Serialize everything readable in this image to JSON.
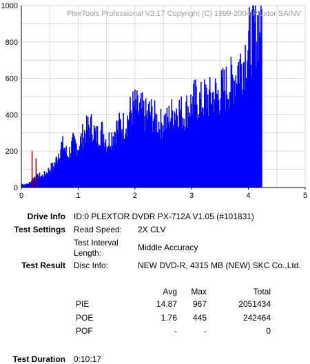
{
  "chart_data": {
    "type": "bar",
    "watermark": "PlexTools Professional V2.17 Copyright (C) 1999-2004 Plextor SA/NV",
    "xlim": [
      0,
      5
    ],
    "ylim": [
      0,
      1000
    ],
    "x_ticks": [
      "0",
      "1",
      "2",
      "3",
      "4",
      "5"
    ],
    "y_ticks": [
      "0",
      "200",
      "400",
      "600",
      "800",
      "1000"
    ],
    "grid": true,
    "bar_color": "#0000ff",
    "spike_color": "#8b0000",
    "series": [
      {
        "points": [
          [
            0.02,
            20
          ],
          [
            0.08,
            18
          ],
          [
            0.12,
            25
          ],
          [
            0.15,
            30
          ],
          [
            0.18,
            45
          ],
          [
            0.22,
            60
          ],
          [
            0.25,
            55
          ],
          [
            0.3,
            70
          ],
          [
            0.35,
            65
          ],
          [
            0.4,
            75
          ],
          [
            0.45,
            90
          ],
          [
            0.5,
            110
          ],
          [
            0.55,
            120
          ],
          [
            0.6,
            150
          ],
          [
            0.65,
            200
          ],
          [
            0.7,
            240
          ],
          [
            0.75,
            230
          ],
          [
            0.8,
            180
          ],
          [
            0.85,
            210
          ],
          [
            0.9,
            250
          ],
          [
            0.95,
            240
          ],
          [
            1.0,
            230
          ],
          [
            1.05,
            280
          ],
          [
            1.1,
            310
          ],
          [
            1.15,
            330
          ],
          [
            1.2,
            350
          ],
          [
            1.25,
            340
          ],
          [
            1.3,
            290
          ],
          [
            1.35,
            300
          ],
          [
            1.4,
            320
          ],
          [
            1.45,
            300
          ],
          [
            1.5,
            250
          ],
          [
            1.55,
            280
          ],
          [
            1.6,
            300
          ],
          [
            1.65,
            330
          ],
          [
            1.7,
            340
          ],
          [
            1.75,
            360
          ],
          [
            1.8,
            350
          ],
          [
            1.85,
            380
          ],
          [
            1.9,
            420
          ],
          [
            1.95,
            450
          ],
          [
            2.0,
            460
          ],
          [
            2.05,
            430
          ],
          [
            2.1,
            440
          ],
          [
            2.15,
            420
          ],
          [
            2.2,
            400
          ],
          [
            2.25,
            430
          ],
          [
            2.3,
            410
          ],
          [
            2.35,
            390
          ],
          [
            2.4,
            370
          ],
          [
            2.45,
            360
          ],
          [
            2.5,
            380
          ],
          [
            2.55,
            370
          ],
          [
            2.6,
            400
          ],
          [
            2.65,
            420
          ],
          [
            2.7,
            440
          ],
          [
            2.75,
            450
          ],
          [
            2.8,
            430
          ],
          [
            2.85,
            410
          ],
          [
            2.9,
            440
          ],
          [
            2.95,
            460
          ],
          [
            3.0,
            480
          ],
          [
            3.05,
            500
          ],
          [
            3.1,
            490
          ],
          [
            3.15,
            480
          ],
          [
            3.2,
            500
          ],
          [
            3.25,
            510
          ],
          [
            3.3,
            500
          ],
          [
            3.35,
            520
          ],
          [
            3.4,
            530
          ],
          [
            3.45,
            520
          ],
          [
            3.5,
            540
          ],
          [
            3.55,
            560
          ],
          [
            3.6,
            570
          ],
          [
            3.65,
            580
          ],
          [
            3.7,
            600
          ],
          [
            3.75,
            620
          ],
          [
            3.8,
            680
          ],
          [
            3.85,
            700
          ],
          [
            3.9,
            710
          ],
          [
            3.95,
            780
          ],
          [
            4.0,
            820
          ],
          [
            4.05,
            850
          ],
          [
            4.1,
            900
          ],
          [
            4.15,
            920
          ],
          [
            4.2,
            950
          ],
          [
            4.23,
            967
          ]
        ]
      }
    ],
    "spikes": [
      [
        0.18,
        200
      ],
      [
        0.25,
        160
      ]
    ]
  },
  "info": {
    "drive_info_label": "Drive Info",
    "drive_info_value": "ID:0 PLEXTOR DVDR PX-712A V1.05 (#101831)",
    "test_settings_label": "Test Settings",
    "read_speed_label": "Read Speed:",
    "read_speed_value": "2X CLV",
    "interval_label_1": "Test Interval",
    "interval_label_2": "Length:",
    "interval_value": "Middle Accuracy",
    "test_result_label": "Test Result",
    "disc_info_label": "Disc Info:",
    "disc_info_value": "NEW DVD-R, 4315 MB (NEW) SKC Co.,Ltd.",
    "col_avg": "Avg",
    "col_max": "Max",
    "col_total": "Total",
    "pie_label": "PIE",
    "pie_avg": "14.87",
    "pie_max": "967",
    "pie_total": "2051434",
    "poe_label": "POE",
    "poe_avg": "1.76",
    "poe_max": "445",
    "poe_total": "242464",
    "pof_label": "POF",
    "pof_avg": "-",
    "pof_max": "-",
    "pof_total": "0",
    "duration_label": "Test Duration",
    "duration_value": "0:10:17"
  }
}
